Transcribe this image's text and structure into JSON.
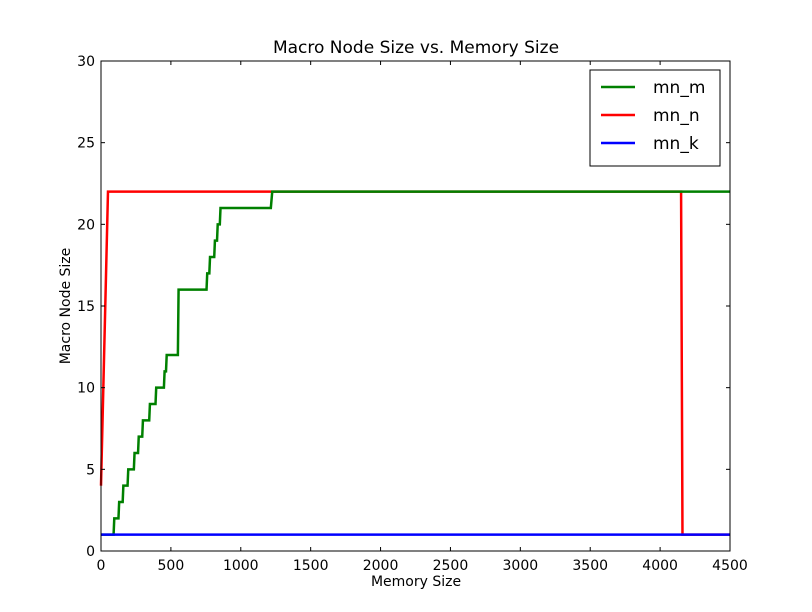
{
  "chart_data": {
    "type": "line",
    "title": "Macro Node Size vs. Memory Size",
    "xlabel": "Memory Size",
    "ylabel": "Macro Node Size",
    "xlim": [
      0,
      4500
    ],
    "ylim": [
      0,
      30
    ],
    "xticks": [
      0,
      500,
      1000,
      1500,
      2000,
      2500,
      3000,
      3500,
      4000,
      4500
    ],
    "yticks": [
      0,
      5,
      10,
      15,
      20,
      25,
      30
    ],
    "grid": false,
    "legend_position": "top-right",
    "series": [
      {
        "name": "mn_m",
        "color": "#008000",
        "points": [
          [
            0,
            1
          ],
          [
            90,
            1
          ],
          [
            95,
            2
          ],
          [
            125,
            2
          ],
          [
            130,
            3
          ],
          [
            155,
            3
          ],
          [
            160,
            4
          ],
          [
            190,
            4
          ],
          [
            195,
            5
          ],
          [
            235,
            5
          ],
          [
            240,
            6
          ],
          [
            265,
            6
          ],
          [
            270,
            7
          ],
          [
            295,
            7
          ],
          [
            300,
            8
          ],
          [
            345,
            8
          ],
          [
            350,
            9
          ],
          [
            390,
            9
          ],
          [
            395,
            10
          ],
          [
            450,
            10
          ],
          [
            455,
            11
          ],
          [
            465,
            11
          ],
          [
            470,
            12
          ],
          [
            550,
            12
          ],
          [
            555,
            16
          ],
          [
            755,
            16
          ],
          [
            760,
            17
          ],
          [
            775,
            17
          ],
          [
            780,
            18
          ],
          [
            810,
            18
          ],
          [
            815,
            19
          ],
          [
            830,
            19
          ],
          [
            835,
            20
          ],
          [
            850,
            20
          ],
          [
            855,
            21
          ],
          [
            1215,
            21
          ],
          [
            1225,
            22
          ],
          [
            4500,
            22
          ]
        ]
      },
      {
        "name": "mn_n",
        "color": "#ff0000",
        "points": [
          [
            0,
            4
          ],
          [
            50,
            22
          ],
          [
            4150,
            22
          ],
          [
            4160,
            1
          ],
          [
            4500,
            1
          ]
        ]
      },
      {
        "name": "mn_k",
        "color": "#0000ff",
        "points": [
          [
            0,
            1
          ],
          [
            4500,
            1
          ]
        ]
      }
    ]
  }
}
